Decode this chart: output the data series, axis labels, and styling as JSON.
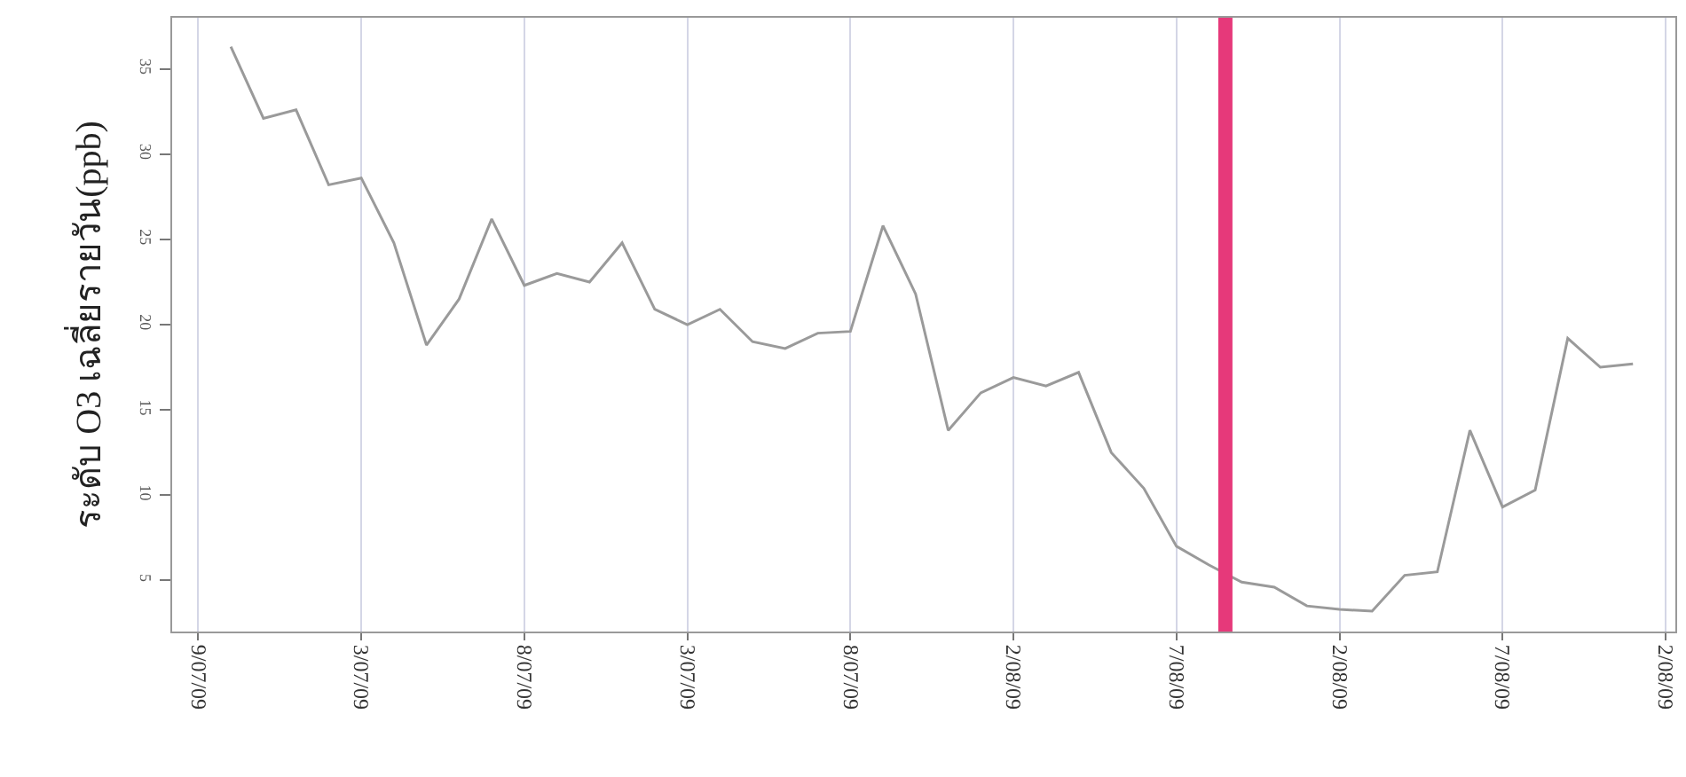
{
  "chart_data": {
    "type": "line",
    "ylabel": "ระดับ O3 เฉลี่ยรายวัน(ppb)",
    "categories": [
      "9/07/09",
      null,
      null,
      null,
      null,
      "3/07/09",
      null,
      null,
      null,
      null,
      "8/07/09",
      null,
      null,
      null,
      null,
      "3/07/09",
      null,
      null,
      null,
      null,
      "8/07/09",
      null,
      null,
      null,
      null,
      "2/08/09",
      null,
      null,
      null,
      null,
      "7/08/09",
      null,
      null,
      null,
      null,
      "2/08/09",
      null,
      null,
      null,
      null,
      "7/08/09",
      null,
      null,
      null,
      null,
      "2/08/09"
    ],
    "series": [
      {
        "color": "#9a9a9a",
        "values": [
          null,
          36.3,
          32.1,
          32.6,
          28.2,
          28.6,
          24.8,
          18.8,
          21.5,
          26.2,
          22.3,
          23.0,
          22.5,
          24.8,
          20.9,
          20.0,
          20.9,
          19.0,
          18.6,
          19.5,
          19.6,
          25.8,
          21.8,
          13.8,
          16.0,
          16.9,
          16.4,
          17.2,
          12.5,
          10.4,
          7.0,
          5.9,
          4.9,
          4.6,
          3.5,
          3.3,
          3.2,
          5.3,
          5.5,
          13.8,
          9.3,
          10.3,
          19.2,
          17.5,
          17.7,
          null
        ]
      }
    ],
    "ylim": [
      2,
      38
    ],
    "yticks": [
      5,
      10,
      15,
      20,
      25,
      30,
      35
    ],
    "grid": "x",
    "marker": "none",
    "line_style": "solid"
  }
}
